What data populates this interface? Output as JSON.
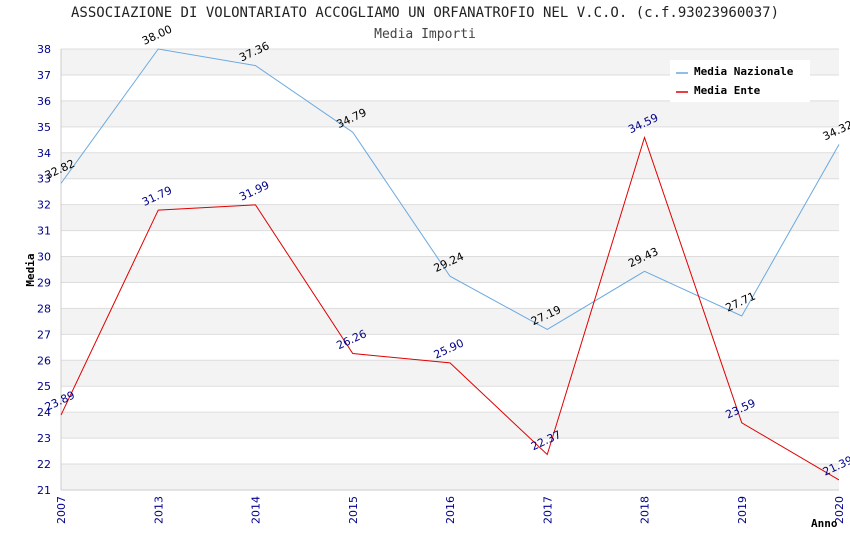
{
  "chart_data": {
    "type": "line",
    "title": "ASSOCIAZIONE DI VOLONTARIATO ACCOGLIAMO UN ORFANATROFIO NEL V.C.O. (c.f.93023960037)",
    "subtitle": "Media Importi",
    "xlabel": "Anno",
    "ylabel": "Media",
    "ylim": [
      21,
      38
    ],
    "categories": [
      "2007",
      "2013",
      "2014",
      "2015",
      "2016",
      "2017",
      "2018",
      "2019",
      "2020"
    ],
    "series": [
      {
        "name": "Media Nazionale",
        "color": "#6aa9e0",
        "label_color": "#000000",
        "values": [
          32.82,
          38.0,
          37.36,
          34.79,
          29.24,
          27.19,
          29.43,
          27.71,
          34.32
        ],
        "labels": [
          "32.82",
          "38.00",
          "37.36",
          "34.79",
          "29.24",
          "27.19",
          "29.43",
          "27.71",
          "34.32"
        ]
      },
      {
        "name": "Media Ente",
        "color": "#e00000",
        "label_color": "#00008b",
        "values": [
          23.89,
          31.79,
          31.99,
          26.26,
          25.9,
          22.37,
          34.59,
          23.59,
          21.39
        ],
        "labels": [
          "23.89",
          "31.79",
          "31.99",
          "26.26",
          "25.90",
          "22.37",
          "34.59",
          "23.59",
          "21.39"
        ]
      }
    ],
    "grid": true,
    "legend": "top-right"
  }
}
